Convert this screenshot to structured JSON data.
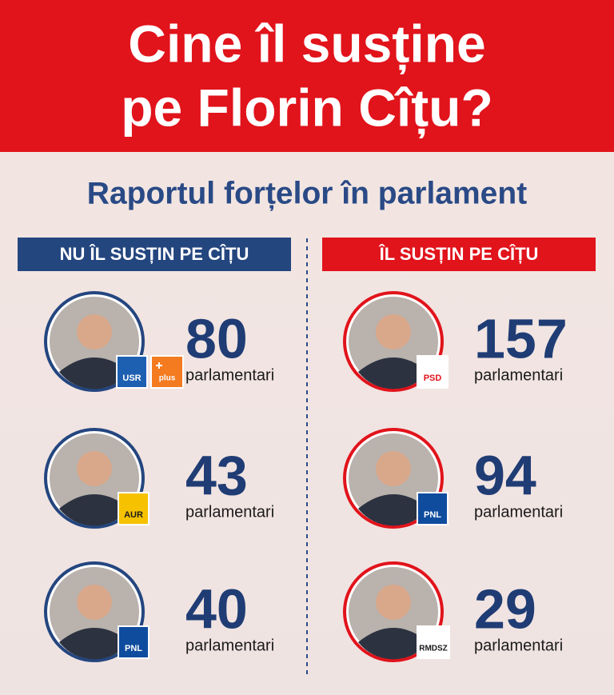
{
  "header": {
    "title_lines": [
      "Cine îl susține",
      "pe Florin Cîțu?"
    ]
  },
  "subtitle": "Raportul forțelor în parlament",
  "columns": [
    {
      "heading": "NU ÎL SUSȚIN PE CÎȚU",
      "color": "#24467f",
      "entries": [
        {
          "count": 80,
          "unit": "parlamentari",
          "badges": [
            {
              "label": "USR",
              "color": "#1d5fb0",
              "text_color": "#ffffff"
            },
            {
              "label": "plus",
              "color": "#f47b20",
              "text_color": "#ffffff"
            }
          ]
        },
        {
          "count": 43,
          "unit": "parlamentari",
          "badges": [
            {
              "label": "AUR",
              "color": "#f6c200",
              "text_color": "#1a1a1a"
            }
          ]
        },
        {
          "count": 40,
          "unit": "parlamentari",
          "badges": [
            {
              "label": "PNL",
              "color": "#0f4c9e",
              "text_color": "#ffffff"
            }
          ]
        }
      ]
    },
    {
      "heading": "ÎL SUSȚIN PE CÎȚU",
      "color": "#e1131b",
      "entries": [
        {
          "count": 157,
          "unit": "parlamentari",
          "badges": [
            {
              "label": "PSD",
              "color": "#ffffff",
              "text_color": "#e1131b"
            }
          ]
        },
        {
          "count": 94,
          "unit": "parlamentari",
          "badges": [
            {
              "label": "PNL",
              "color": "#0f4c9e",
              "text_color": "#ffffff"
            }
          ]
        },
        {
          "count": 29,
          "unit": "parlamentari",
          "badges": [
            {
              "label": "RMDSZ",
              "color": "#ffffff",
              "text_color": "#1a1a1a"
            }
          ]
        }
      ]
    }
  ]
}
